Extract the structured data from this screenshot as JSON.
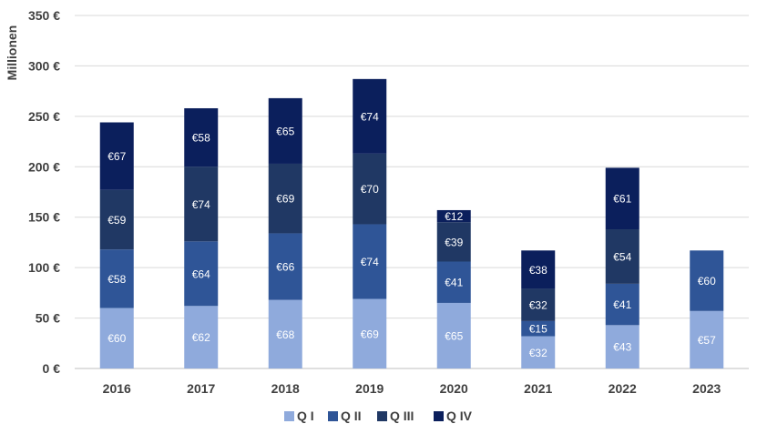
{
  "chart_data": {
    "type": "bar",
    "stacked": true,
    "title": "",
    "xlabel": "",
    "ylabel": "Millionen",
    "ylim": [
      0,
      350
    ],
    "yticks": [
      0,
      50,
      100,
      150,
      200,
      250,
      300,
      350
    ],
    "ytick_labels": [
      "0 €",
      "50 €",
      "100 €",
      "150 €",
      "200 €",
      "250 €",
      "300 €",
      "350 €"
    ],
    "categories": [
      "2016",
      "2017",
      "2018",
      "2019",
      "2020",
      "2021",
      "2022",
      "2023"
    ],
    "series": [
      {
        "name": "Q I",
        "color": "#8faadc",
        "values": [
          60,
          62,
          68,
          69,
          65,
          32,
          43,
          57
        ],
        "labels": [
          "€60",
          "€62",
          "€68",
          "€69",
          "€65",
          "€32",
          "€43",
          "€57"
        ]
      },
      {
        "name": "Q II",
        "color": "#2f5597",
        "values": [
          58,
          64,
          66,
          74,
          41,
          15,
          41,
          60
        ],
        "labels": [
          "€58",
          "€64",
          "€66",
          "€74",
          "€41",
          "€15",
          "€41",
          "€60"
        ]
      },
      {
        "name": "Q III",
        "color": "#203864",
        "values": [
          59,
          74,
          69,
          70,
          39,
          32,
          54,
          null
        ],
        "labels": [
          "€59",
          "€74",
          "€69",
          "€70",
          "€39",
          "€32",
          "€54",
          null
        ]
      },
      {
        "name": "Q IV",
        "color": "#0b1f5c",
        "values": [
          67,
          58,
          65,
          74,
          12,
          38,
          61,
          null
        ],
        "labels": [
          "€67",
          "€58",
          "€65",
          "€74",
          "€12",
          "€38",
          "€61",
          null
        ]
      }
    ],
    "grid": true,
    "legend_position": "bottom"
  }
}
